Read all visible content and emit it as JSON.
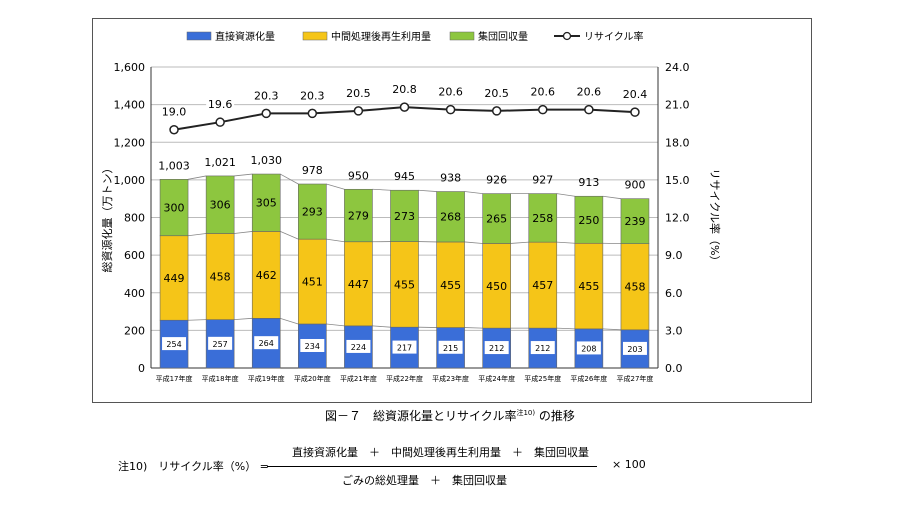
{
  "chart_data": {
    "type": "bar",
    "stacked": true,
    "categories": [
      "平成17年度",
      "平成18年度",
      "平成19年度",
      "平成20年度",
      "平成21年度",
      "平成22年度",
      "平成23年度",
      "平成24年度",
      "平成25年度",
      "平成26年度",
      "平成27年度"
    ],
    "series": [
      {
        "name": "直接資源化量",
        "color": "#3a6ed8",
        "values": [
          254,
          257,
          264,
          234,
          224,
          217,
          215,
          212,
          212,
          208,
          203
        ]
      },
      {
        "name": "中間処理後再生利用量",
        "color": "#f5c518",
        "values": [
          449,
          458,
          462,
          451,
          447,
          455,
          455,
          450,
          457,
          455,
          458
        ]
      },
      {
        "name": "集団回収量",
        "color": "#8dc63f",
        "values": [
          300,
          306,
          305,
          293,
          279,
          273,
          268,
          265,
          258,
          250,
          239
        ]
      }
    ],
    "totals": [
      1003,
      1021,
      1030,
      978,
      950,
      945,
      938,
      926,
      927,
      913,
      900
    ],
    "total_labels": [
      "1,003",
      "1,021",
      "1,030",
      "978",
      "950",
      "945",
      "938",
      "926",
      "927",
      "913",
      "900"
    ],
    "line_series": {
      "name": "リサイクル率",
      "axis": "right",
      "values": [
        19.0,
        19.6,
        20.3,
        20.3,
        20.5,
        20.8,
        20.6,
        20.5,
        20.6,
        20.6,
        20.4
      ]
    },
    "line_labels": [
      "19.0",
      "19.6",
      "20.3",
      "20.3",
      "20.5",
      "20.8",
      "20.6",
      "20.5",
      "20.6",
      "20.6",
      "20.4"
    ],
    "ylabel": "総資源化量（万トン）",
    "y2label": "リサイクル率（%）",
    "ylim": [
      0,
      1600
    ],
    "y2lim": [
      0,
      24
    ],
    "yticks": [
      "0",
      "200",
      "400",
      "600",
      "800",
      "1,000",
      "1,200",
      "1,400",
      "1,600"
    ],
    "y2ticks": [
      "0.0",
      "3.0",
      "6.0",
      "9.0",
      "12.0",
      "15.0",
      "18.0",
      "21.0",
      "24.0"
    ],
    "grid": true,
    "legend": "top"
  },
  "caption": {
    "text": "図－７　総資源化量とリサイクル率",
    "note": "注10)",
    "suffix": "の推移"
  },
  "formula": {
    "label": "注10)　リサイクル率（%） =",
    "numerator": "直接資源化量　＋　中間処理後再生利用量　＋　集団回収量",
    "denominator": "ごみの総処理量　＋　集団回収量",
    "multiplier": "× 100"
  }
}
